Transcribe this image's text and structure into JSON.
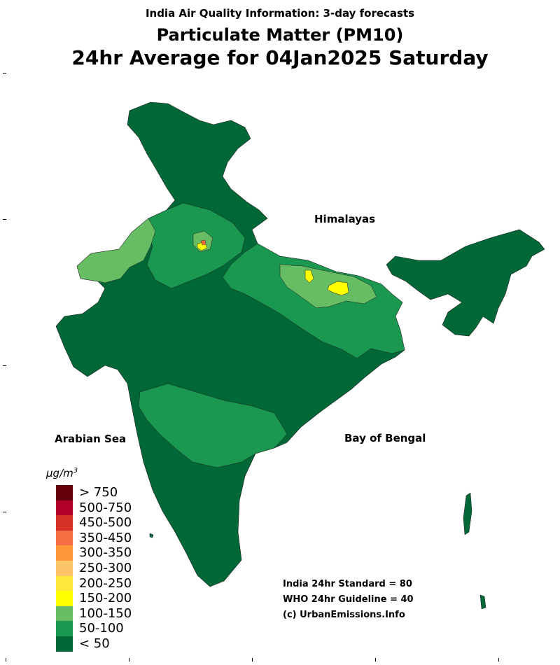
{
  "header": {
    "title": "India Air Quality Information: 3-day forecasts",
    "pollutant": "Particulate Matter (PM10)",
    "period": "24hr Average for 04Jan2025 Saturday"
  },
  "map_labels": {
    "himalayas": "Himalayas",
    "arabian_sea": "Arabian Sea",
    "bay_of_bengal": "Bay of Bengal"
  },
  "notes": {
    "standard": "India 24hr Standard = 80",
    "guideline": "WHO 24hr Guideline = 40",
    "credit": "(c) UrbanEmissions.Info"
  },
  "legend": {
    "unit_base": "μg/m",
    "unit_exp": "3",
    "items": [
      {
        "label": "> 750",
        "color": "#67000d"
      },
      {
        "label": "500-750",
        "color": "#b1002a"
      },
      {
        "label": "450-500",
        "color": "#d73027"
      },
      {
        "label": "350-450",
        "color": "#f46d43"
      },
      {
        "label": "300-350",
        "color": "#fd9738"
      },
      {
        "label": "250-300",
        "color": "#fec46a"
      },
      {
        "label": "200-250",
        "color": "#ffe83a"
      },
      {
        "label": "150-200",
        "color": "#ffff00"
      },
      {
        "label": "100-150",
        "color": "#66bd63"
      },
      {
        "label": "50-100",
        "color": "#1a9850"
      },
      {
        "label": "< 50",
        "color": "#006837"
      }
    ]
  },
  "colors": {
    "lt50": "#006837",
    "c50_100": "#1a9850",
    "c100_150": "#66bd63",
    "c150_200": "#ffff00",
    "c350_450": "#f46d43",
    "border": "#1f1f1f"
  }
}
